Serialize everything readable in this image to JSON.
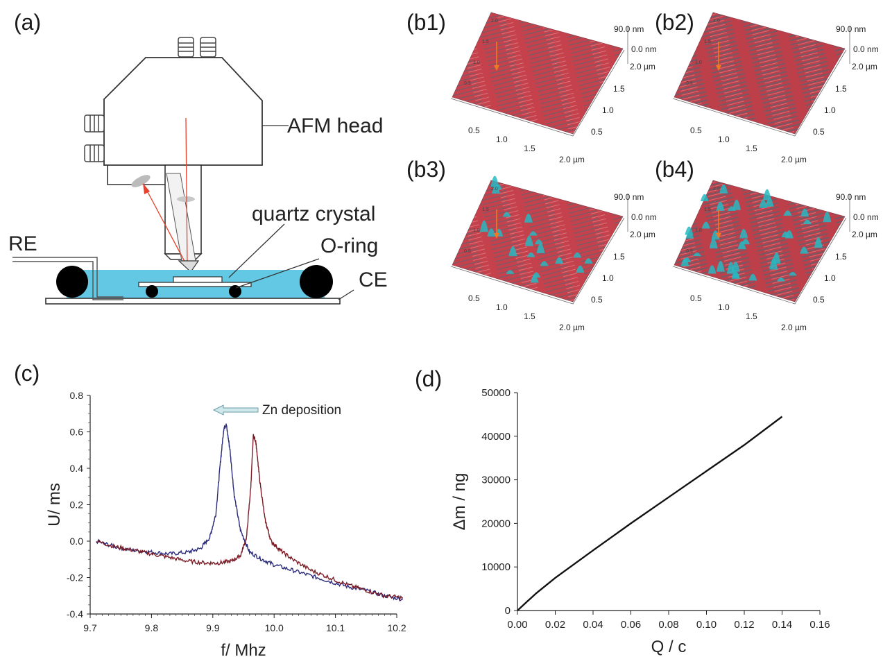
{
  "panels": {
    "a": "(a)",
    "b1": "(b1)",
    "b2": "(b2)",
    "b3": "(b3)",
    "b4": "(b4)",
    "c": "(c)",
    "d": "(d)"
  },
  "schematic": {
    "labels": {
      "afm_head": "AFM head",
      "quartz_crystal": "quartz crystal",
      "o_ring": "O-ring",
      "re": "RE",
      "ce": "CE"
    },
    "colors": {
      "electrolyte": "#63c8e4",
      "laser": "#e8402a",
      "frame": "#333333"
    }
  },
  "afm_maps": {
    "z_top_label": "90.0 nm",
    "z_zero_label": "0.0 nm",
    "corner_label": "2.0 µm",
    "y_ticks": [
      "1.5",
      "1.0",
      "0.5"
    ],
    "x_ticks": [
      "0.5",
      "1.0",
      "1.5"
    ],
    "x_end_label": "2.0 µm",
    "back_ticks": [
      "2.0",
      "1.5",
      "1.0",
      "0.5"
    ],
    "surface_color": "#d9404a",
    "peak_color": "#27b9c2"
  },
  "chart_data": [
    {
      "panel": "c",
      "type": "line",
      "xlabel": "f/ Mhz",
      "ylabel": "U/ ms",
      "xlim": [
        9.7,
        10.2
      ],
      "ylim": [
        -0.4,
        0.8
      ],
      "x_ticks": [
        "9.7",
        "9.8",
        "9.9",
        "10.0",
        "10.1",
        "10.2"
      ],
      "y_ticks": [
        "-0.4",
        "-0.2",
        "0.0",
        "0.2",
        "0.4",
        "0.6",
        "0.8"
      ],
      "annotation": "Zn deposition",
      "series": [
        {
          "color": "#2a2a7a",
          "x": [
            9.71,
            9.74,
            9.77,
            9.8,
            9.83,
            9.86,
            9.88,
            9.895,
            9.905,
            9.912,
            9.918,
            9.922,
            9.928,
            9.935,
            9.945,
            9.96,
            9.98,
            10.0,
            10.03,
            10.06,
            10.09,
            10.12,
            10.15,
            10.18,
            10.21
          ],
          "y": [
            0.0,
            -0.03,
            -0.05,
            -0.06,
            -0.07,
            -0.06,
            -0.04,
            0.02,
            0.15,
            0.42,
            0.62,
            0.64,
            0.5,
            0.25,
            0.06,
            -0.06,
            -0.1,
            -0.13,
            -0.16,
            -0.19,
            -0.22,
            -0.25,
            -0.27,
            -0.3,
            -0.32
          ]
        },
        {
          "color": "#7a1a24",
          "x": [
            9.71,
            9.74,
            9.77,
            9.8,
            9.83,
            9.86,
            9.89,
            9.91,
            9.93,
            9.945,
            9.955,
            9.962,
            9.966,
            9.97,
            9.976,
            9.985,
            9.995,
            10.01,
            10.03,
            10.06,
            10.09,
            10.12,
            10.15,
            10.18,
            10.21
          ],
          "y": [
            0.0,
            -0.03,
            -0.05,
            -0.07,
            -0.09,
            -0.11,
            -0.12,
            -0.12,
            -0.11,
            -0.08,
            0.02,
            0.3,
            0.58,
            0.55,
            0.35,
            0.12,
            0.0,
            -0.05,
            -0.1,
            -0.16,
            -0.2,
            -0.24,
            -0.27,
            -0.3,
            -0.31
          ]
        }
      ]
    },
    {
      "panel": "d",
      "type": "line",
      "xlabel": "Q / c",
      "ylabel": "Δm / ng",
      "xlim": [
        0,
        0.16
      ],
      "ylim": [
        0,
        50000
      ],
      "x_ticks": [
        "0.00",
        "0.02",
        "0.04",
        "0.06",
        "0.08",
        "0.10",
        "0.12",
        "0.14",
        "0.16"
      ],
      "y_ticks": [
        "0",
        "10000",
        "20000",
        "30000",
        "40000",
        "50000"
      ],
      "series": [
        {
          "color": "#111111",
          "x": [
            0,
            0.005,
            0.01,
            0.02,
            0.04,
            0.06,
            0.08,
            0.1,
            0.12,
            0.14
          ],
          "y": [
            0,
            2000,
            4000,
            7500,
            13800,
            20000,
            26000,
            32000,
            38000,
            44500
          ]
        }
      ]
    }
  ]
}
